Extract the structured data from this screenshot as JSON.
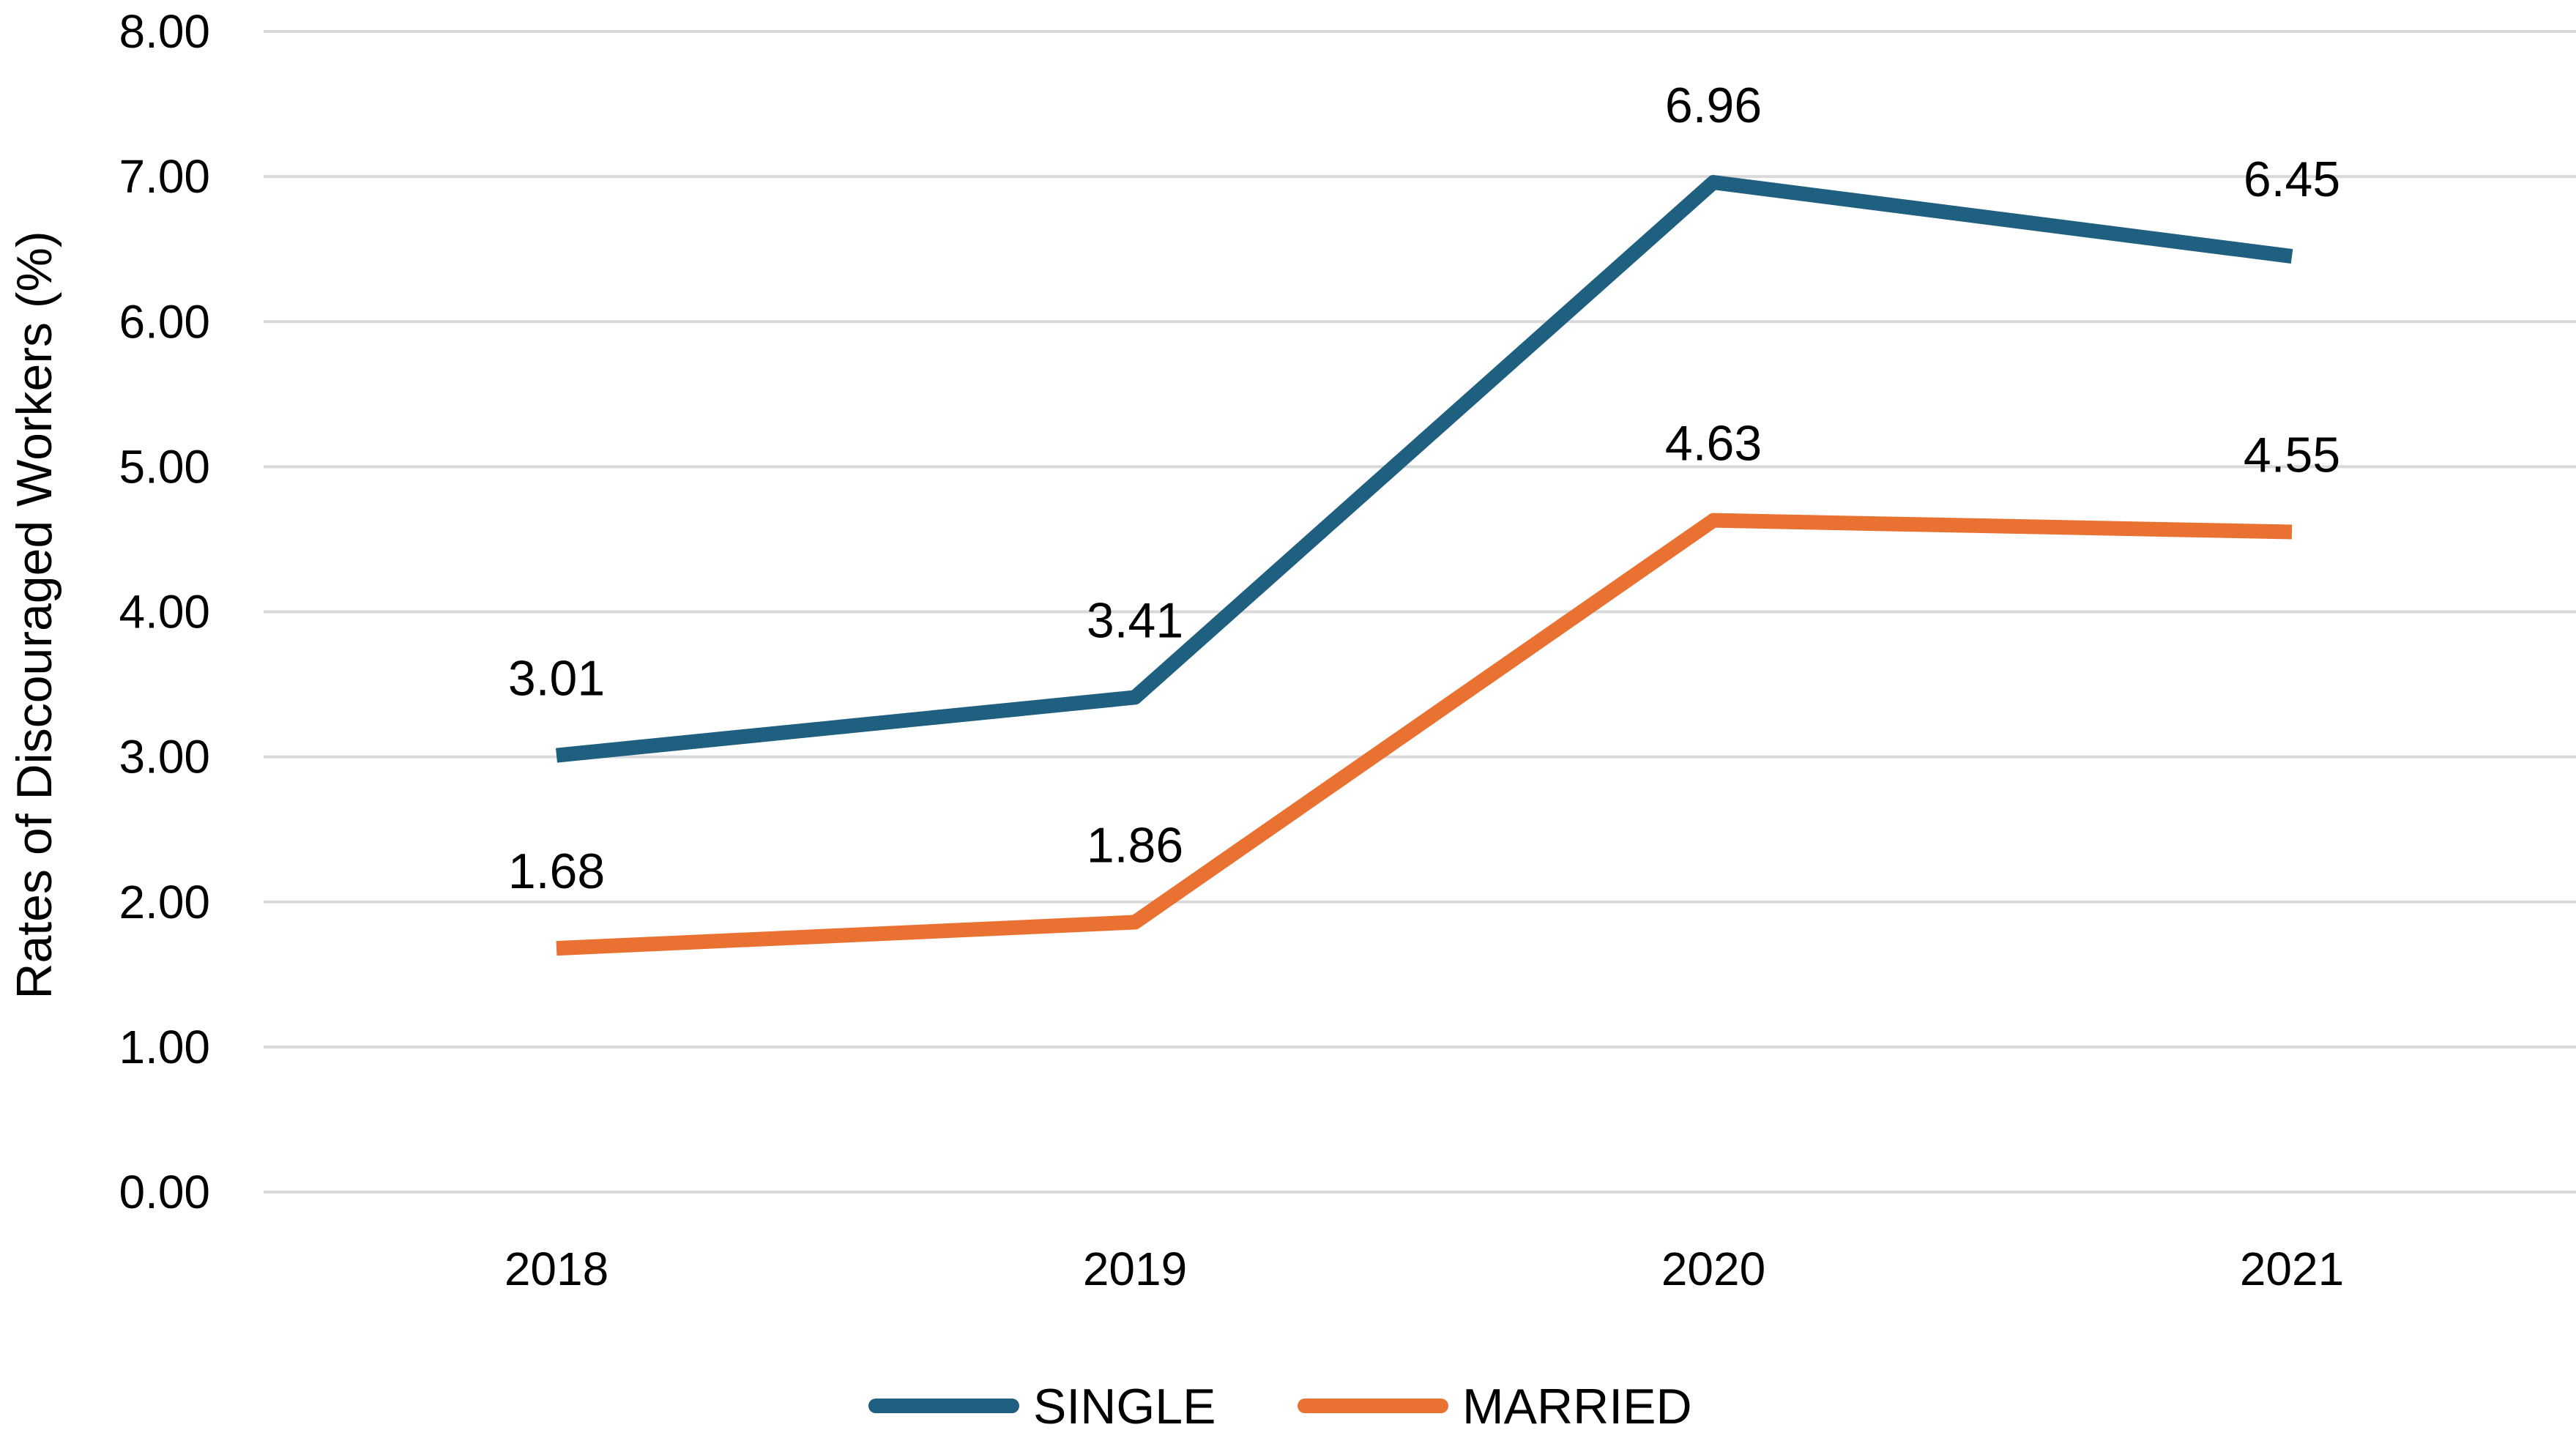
{
  "chart_data": {
    "type": "line",
    "title": "",
    "xlabel": "",
    "ylabel": "Rates of Discouraged Workers (%)",
    "categories": [
      "2018",
      "2019",
      "2020",
      "2021"
    ],
    "ylim": [
      0,
      8
    ],
    "yticks": [
      "0.00",
      "1.00",
      "2.00",
      "3.00",
      "4.00",
      "5.00",
      "6.00",
      "7.00",
      "8.00"
    ],
    "grid": true,
    "legend_position": "bottom",
    "series": [
      {
        "name": "SINGLE",
        "color": "#1f5f7f",
        "values": [
          3.01,
          3.41,
          6.96,
          6.45
        ],
        "labels": [
          "3.01",
          "3.41",
          "6.96",
          "6.45"
        ]
      },
      {
        "name": "MARRIED",
        "color": "#e97132",
        "values": [
          1.68,
          1.86,
          4.63,
          4.55
        ],
        "labels": [
          "1.68",
          "1.86",
          "4.63",
          "4.55"
        ]
      }
    ]
  }
}
